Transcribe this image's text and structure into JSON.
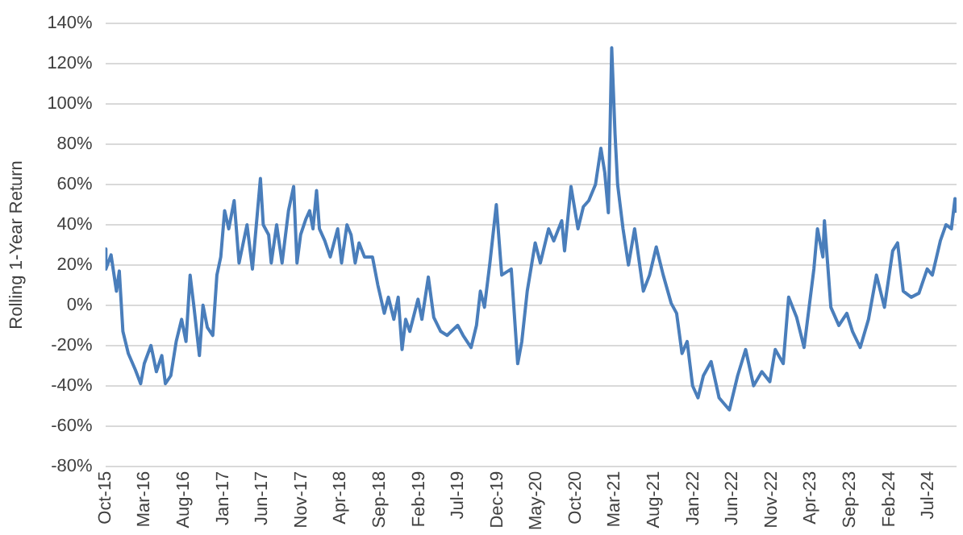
{
  "chart_data": {
    "type": "line",
    "ylabel": "Rolling 1-Year Return",
    "grid": "y",
    "legend": false,
    "marker": "none",
    "line_style": "solid",
    "ylim": [
      -80,
      140
    ],
    "yticks": [
      {
        "value": -80,
        "label": "-80%"
      },
      {
        "value": -60,
        "label": "-60%"
      },
      {
        "value": -40,
        "label": "-40%"
      },
      {
        "value": -20,
        "label": "-20%"
      },
      {
        "value": 0,
        "label": "0%"
      },
      {
        "value": 20,
        "label": "20%"
      },
      {
        "value": 40,
        "label": "40%"
      },
      {
        "value": 60,
        "label": "60%"
      },
      {
        "value": 80,
        "label": "80%"
      },
      {
        "value": 100,
        "label": "100%"
      },
      {
        "value": 120,
        "label": "120%"
      },
      {
        "value": 140,
        "label": "140%"
      }
    ],
    "xlim": [
      "2015-10-01",
      "2024-10-18"
    ],
    "xticks": [
      {
        "value": "2015-10-01",
        "label": "Oct-15"
      },
      {
        "value": "2016-03-01",
        "label": "Mar-16"
      },
      {
        "value": "2016-08-01",
        "label": "Aug-16"
      },
      {
        "value": "2017-01-01",
        "label": "Jan-17"
      },
      {
        "value": "2017-06-01",
        "label": "Jun-17"
      },
      {
        "value": "2017-11-01",
        "label": "Nov-17"
      },
      {
        "value": "2018-04-01",
        "label": "Apr-18"
      },
      {
        "value": "2018-09-01",
        "label": "Sep-18"
      },
      {
        "value": "2019-02-01",
        "label": "Feb-19"
      },
      {
        "value": "2019-07-01",
        "label": "Jul-19"
      },
      {
        "value": "2019-12-01",
        "label": "Dec-19"
      },
      {
        "value": "2020-05-01",
        "label": "May-20"
      },
      {
        "value": "2020-10-01",
        "label": "Oct-20"
      },
      {
        "value": "2021-03-01",
        "label": "Mar-21"
      },
      {
        "value": "2021-08-01",
        "label": "Aug-21"
      },
      {
        "value": "2022-01-01",
        "label": "Jan-22"
      },
      {
        "value": "2022-06-01",
        "label": "Jun-22"
      },
      {
        "value": "2022-11-01",
        "label": "Nov-22"
      },
      {
        "value": "2023-04-01",
        "label": "Apr-23"
      },
      {
        "value": "2023-09-01",
        "label": "Sep-23"
      },
      {
        "value": "2024-02-01",
        "label": "Feb-24"
      },
      {
        "value": "2024-07-01",
        "label": "Jul-24"
      }
    ],
    "x": [
      "2015-10-01",
      "2015-10-03",
      "2015-10-23",
      "2015-11-13",
      "2015-11-24",
      "2015-12-08",
      "2015-12-29",
      "2016-01-25",
      "2016-02-15",
      "2016-02-29",
      "2016-03-26",
      "2016-04-16",
      "2016-05-07",
      "2016-05-21",
      "2016-06-11",
      "2016-07-02",
      "2016-07-23",
      "2016-08-09",
      "2016-08-25",
      "2016-09-09",
      "2016-09-30",
      "2016-10-14",
      "2016-10-31",
      "2016-11-21",
      "2016-12-07",
      "2016-12-22",
      "2017-01-06",
      "2017-01-22",
      "2017-02-12",
      "2017-03-03",
      "2017-04-03",
      "2017-04-24",
      "2017-05-25",
      "2017-06-05",
      "2017-06-26",
      "2017-07-06",
      "2017-07-27",
      "2017-08-17",
      "2017-09-11",
      "2017-10-01",
      "2017-10-14",
      "2017-10-28",
      "2017-11-18",
      "2017-12-02",
      "2017-12-15",
      "2017-12-29",
      "2018-01-09",
      "2018-01-30",
      "2018-02-20",
      "2018-03-21",
      "2018-04-05",
      "2018-04-26",
      "2018-05-12",
      "2018-05-28",
      "2018-06-12",
      "2018-07-03",
      "2018-08-03",
      "2018-08-24",
      "2018-09-18",
      "2018-10-04",
      "2018-10-25",
      "2018-11-11",
      "2018-11-26",
      "2018-12-10",
      "2018-12-26",
      "2019-01-27",
      "2019-02-11",
      "2019-03-08",
      "2019-03-29",
      "2019-04-25",
      "2019-05-20",
      "2019-06-30",
      "2019-07-21",
      "2019-08-21",
      "2019-09-11",
      "2019-09-26",
      "2019-10-12",
      "2019-11-02",
      "2019-11-27",
      "2019-12-18",
      "2020-01-24",
      "2020-02-18",
      "2020-03-05",
      "2020-03-26",
      "2020-04-26",
      "2020-05-16",
      "2020-06-17",
      "2020-07-07",
      "2020-08-07",
      "2020-08-18",
      "2020-09-12",
      "2020-10-09",
      "2020-10-30",
      "2020-11-20",
      "2020-12-16",
      "2021-01-06",
      "2021-01-21",
      "2021-02-04",
      "2021-02-17",
      "2021-03-02",
      "2021-03-12",
      "2021-04-02",
      "2021-04-23",
      "2021-05-17",
      "2021-06-20",
      "2021-07-14",
      "2021-08-09",
      "2021-09-05",
      "2021-10-06",
      "2021-10-27",
      "2021-11-17",
      "2021-12-07",
      "2021-12-28",
      "2022-01-18",
      "2022-02-08",
      "2022-03-10",
      "2022-04-10",
      "2022-05-20",
      "2022-06-21",
      "2022-07-22",
      "2022-08-22",
      "2022-09-23",
      "2022-10-24",
      "2022-11-14",
      "2022-12-15",
      "2023-01-05",
      "2023-02-05",
      "2023-03-06",
      "2023-04-13",
      "2023-04-27",
      "2023-05-18",
      "2023-05-24",
      "2023-06-18",
      "2023-07-19",
      "2023-08-19",
      "2023-09-10",
      "2023-10-10",
      "2023-11-11",
      "2023-12-12",
      "2024-01-12",
      "2024-02-13",
      "2024-03-03",
      "2024-03-25",
      "2024-04-25",
      "2024-05-25",
      "2024-06-26",
      "2024-07-16",
      "2024-08-16",
      "2024-09-07",
      "2024-09-28",
      "2024-10-12",
      "2024-10-18"
    ],
    "series": [
      {
        "color": "#4a7ebb",
        "values": [
          28,
          18,
          25,
          7,
          17,
          -13,
          -24,
          -32,
          -39,
          -29,
          -20,
          -33,
          -25,
          -39,
          -35,
          -18,
          -7,
          -18,
          15,
          -1,
          -25,
          0,
          -11,
          -15,
          15,
          24,
          47,
          38,
          52,
          21,
          40,
          18,
          63,
          40,
          35,
          21,
          40,
          21,
          47,
          59,
          21,
          35,
          43,
          47,
          38,
          57,
          38,
          32,
          24,
          38,
          21,
          40,
          35,
          21,
          31,
          24,
          24,
          10,
          -4,
          4,
          -7,
          4,
          -22,
          -7,
          -13,
          3,
          -7,
          14,
          -6,
          -13,
          -15,
          -10,
          -15,
          -21,
          -10,
          7,
          -1,
          21,
          50,
          15,
          18,
          -29,
          -18,
          7,
          31,
          21,
          38,
          32,
          42,
          27,
          59,
          38,
          49,
          52,
          60,
          78,
          66,
          46,
          128,
          85,
          60,
          38,
          20,
          38,
          7,
          15,
          29,
          15,
          1,
          -4,
          -24,
          -18,
          -40,
          -46,
          -35,
          -28,
          -46,
          -52,
          -35,
          -22,
          -40,
          -33,
          -38,
          -22,
          -29,
          4,
          -6,
          -21,
          18,
          38,
          24,
          42,
          -1,
          -10,
          -4,
          -13,
          -21,
          -7,
          15,
          -1,
          27,
          31,
          7,
          4,
          6,
          18,
          15,
          32,
          40,
          38,
          53,
          46
        ]
      }
    ]
  }
}
